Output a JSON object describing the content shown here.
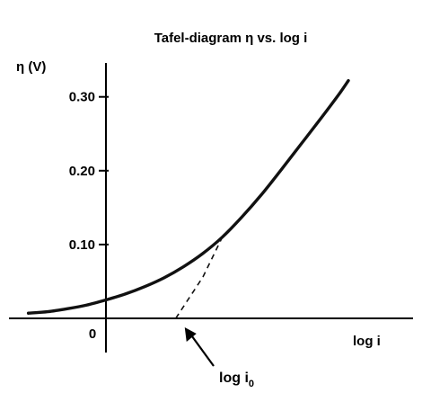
{
  "chart_data": {
    "type": "line",
    "title": "Tafel-diagram η vs. log i",
    "ylabel": "η (V)",
    "xlabel": "log i",
    "ylim": [
      0,
      0.335
    ],
    "xlim": [
      -0.8,
      2.55
    ],
    "grid": false,
    "yticks": [
      {
        "value": 0.1,
        "label": "0.10"
      },
      {
        "value": 0.2,
        "label": "0.20"
      },
      {
        "value": 0.3,
        "label": "0.30"
      }
    ],
    "origin_label": "0",
    "series": [
      {
        "style": "solid",
        "x": [
          -0.8,
          -0.6,
          -0.4,
          -0.2,
          0,
          0.2,
          0.4,
          0.6,
          0.8,
          1.0,
          1.2,
          1.4,
          1.6,
          1.8,
          2.0,
          2.2,
          2.4,
          2.5
        ],
        "y": [
          0.007,
          0.009,
          0.013,
          0.018,
          0.025,
          0.033,
          0.043,
          0.055,
          0.07,
          0.088,
          0.11,
          0.137,
          0.167,
          0.2,
          0.234,
          0.268,
          0.303,
          0.322
        ]
      },
      {
        "style": "dashed",
        "x": [
          0.72,
          1.0,
          1.2
        ],
        "y": [
          0.0,
          0.056,
          0.11
        ]
      }
    ],
    "annotations": [
      {
        "text": "log i",
        "subscript": "0",
        "points_to": {
          "x": 0.72,
          "y": 0.0
        }
      }
    ]
  }
}
